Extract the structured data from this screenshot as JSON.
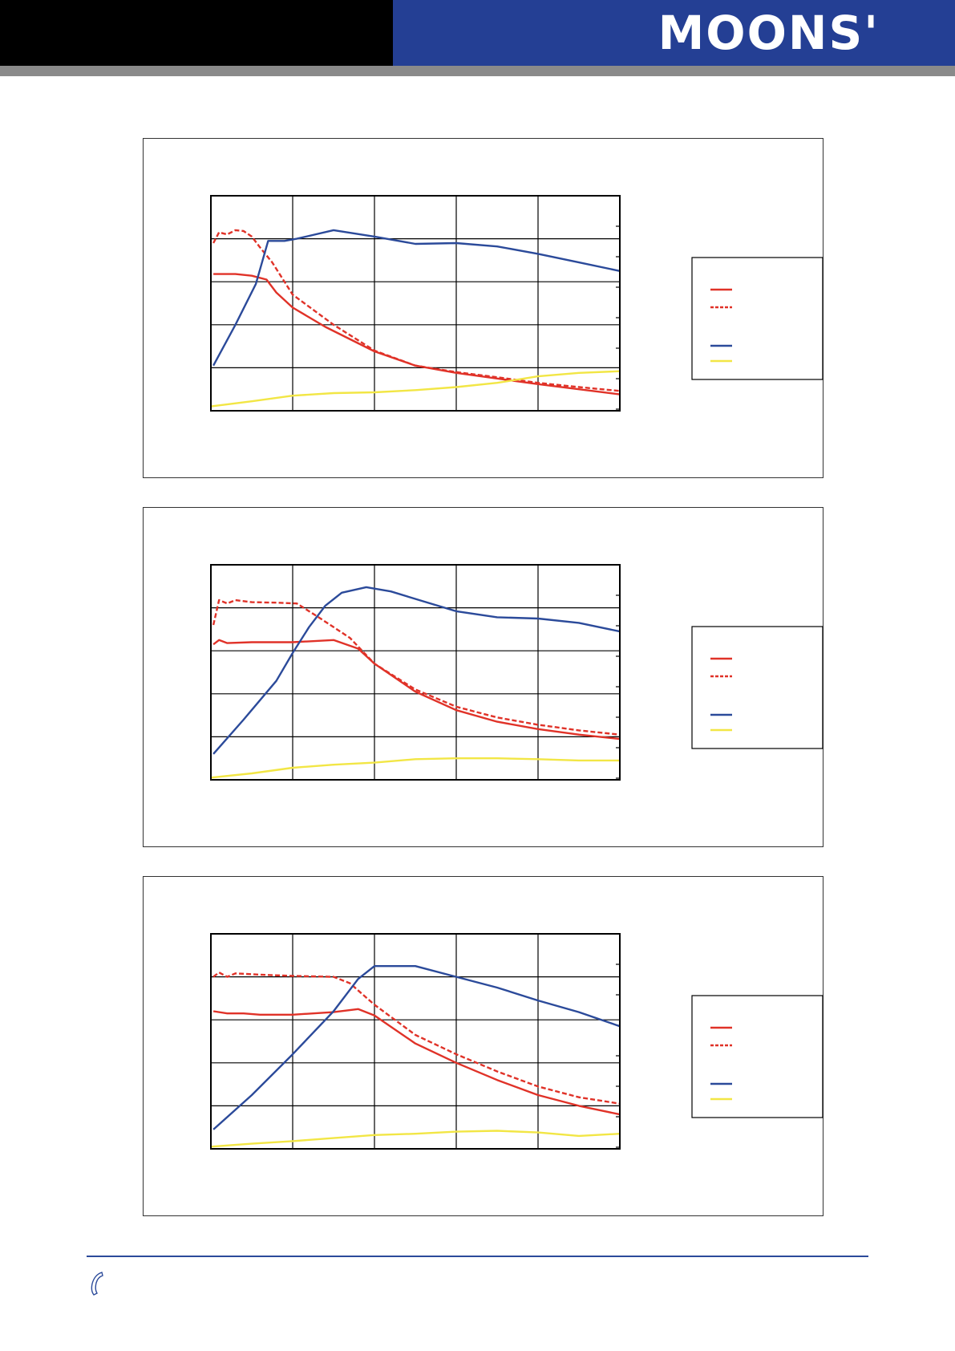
{
  "header": {
    "logo_text": "MOONS'",
    "colors": {
      "left_band": "#000000",
      "right_band": "#243f94",
      "stripe": "#8a8a8a"
    }
  },
  "footer": {
    "icon": "phone-icon"
  },
  "colors": {
    "torque_solid": "#e03228",
    "torque_dashed": "#e03228",
    "power": "#2b4a9a",
    "current": "#f2e645",
    "grid": "#000000"
  },
  "chart_data": [
    {
      "type": "line",
      "xlim": [
        0,
        5
      ],
      "ylim": [
        0,
        5
      ],
      "grid": true,
      "legend_position": "right",
      "series": [
        {
          "style": "solid",
          "color": "#e03228",
          "points": [
            [
              0.03,
              3.18
            ],
            [
              0.3,
              3.18
            ],
            [
              0.5,
              3.14
            ],
            [
              0.68,
              3.05
            ],
            [
              0.8,
              2.75
            ],
            [
              1.0,
              2.4
            ],
            [
              1.4,
              1.95
            ],
            [
              2.0,
              1.38
            ],
            [
              2.5,
              1.05
            ],
            [
              3.0,
              0.88
            ],
            [
              3.5,
              0.75
            ],
            [
              4.0,
              0.62
            ],
            [
              4.5,
              0.5
            ],
            [
              5.0,
              0.38
            ]
          ]
        },
        {
          "style": "dashed",
          "color": "#e03228",
          "points": [
            [
              0.03,
              3.9
            ],
            [
              0.1,
              4.15
            ],
            [
              0.2,
              4.1
            ],
            [
              0.3,
              4.2
            ],
            [
              0.4,
              4.18
            ],
            [
              0.5,
              4.05
            ],
            [
              0.6,
              3.8
            ],
            [
              0.75,
              3.45
            ],
            [
              1.0,
              2.7
            ],
            [
              1.5,
              2.0
            ],
            [
              2.0,
              1.4
            ],
            [
              2.5,
              1.05
            ],
            [
              3.0,
              0.9
            ],
            [
              3.5,
              0.78
            ],
            [
              4.0,
              0.65
            ],
            [
              4.5,
              0.55
            ],
            [
              5.0,
              0.46
            ]
          ]
        },
        {
          "style": "solid",
          "color": "#2b4a9a",
          "points": [
            [
              0.03,
              1.05
            ],
            [
              0.3,
              2.0
            ],
            [
              0.55,
              2.95
            ],
            [
              0.7,
              3.95
            ],
            [
              0.9,
              3.95
            ],
            [
              1.05,
              4.0
            ],
            [
              1.5,
              4.2
            ],
            [
              2.0,
              4.05
            ],
            [
              2.5,
              3.88
            ],
            [
              3.0,
              3.9
            ],
            [
              3.5,
              3.82
            ],
            [
              4.0,
              3.65
            ],
            [
              4.5,
              3.45
            ],
            [
              5.0,
              3.25
            ]
          ]
        },
        {
          "style": "solid",
          "color": "#f2e645",
          "points": [
            [
              0.0,
              0.1
            ],
            [
              0.5,
              0.22
            ],
            [
              1.0,
              0.35
            ],
            [
              1.5,
              0.41
            ],
            [
              2.0,
              0.43
            ],
            [
              2.5,
              0.48
            ],
            [
              3.0,
              0.55
            ],
            [
              3.5,
              0.65
            ],
            [
              4.0,
              0.8
            ],
            [
              4.5,
              0.88
            ],
            [
              5.0,
              0.92
            ]
          ]
        }
      ]
    },
    {
      "type": "line",
      "xlim": [
        0,
        5
      ],
      "ylim": [
        0,
        5
      ],
      "grid": true,
      "legend_position": "right",
      "series": [
        {
          "style": "solid",
          "color": "#e03228",
          "points": [
            [
              0.03,
              3.15
            ],
            [
              0.1,
              3.25
            ],
            [
              0.2,
              3.18
            ],
            [
              0.5,
              3.2
            ],
            [
              1.0,
              3.2
            ],
            [
              1.5,
              3.25
            ],
            [
              1.8,
              3.05
            ],
            [
              2.0,
              2.7
            ],
            [
              2.5,
              2.05
            ],
            [
              3.0,
              1.62
            ],
            [
              3.5,
              1.35
            ],
            [
              4.0,
              1.18
            ],
            [
              4.5,
              1.05
            ],
            [
              5.0,
              0.95
            ]
          ]
        },
        {
          "style": "dashed",
          "color": "#e03228",
          "points": [
            [
              0.03,
              3.6
            ],
            [
              0.1,
              4.18
            ],
            [
              0.2,
              4.1
            ],
            [
              0.3,
              4.18
            ],
            [
              0.5,
              4.13
            ],
            [
              0.8,
              4.12
            ],
            [
              1.05,
              4.1
            ],
            [
              1.3,
              3.8
            ],
            [
              1.7,
              3.3
            ],
            [
              2.0,
              2.7
            ],
            [
              2.5,
              2.1
            ],
            [
              3.0,
              1.7
            ],
            [
              3.5,
              1.45
            ],
            [
              4.0,
              1.28
            ],
            [
              4.5,
              1.15
            ],
            [
              5.0,
              1.05
            ]
          ]
        },
        {
          "style": "solid",
          "color": "#2b4a9a",
          "points": [
            [
              0.03,
              0.6
            ],
            [
              0.4,
              1.4
            ],
            [
              0.8,
              2.3
            ],
            [
              1.0,
              2.95
            ],
            [
              1.2,
              3.55
            ],
            [
              1.4,
              4.05
            ],
            [
              1.6,
              4.35
            ],
            [
              1.9,
              4.48
            ],
            [
              2.2,
              4.38
            ],
            [
              2.6,
              4.15
            ],
            [
              3.0,
              3.92
            ],
            [
              3.5,
              3.78
            ],
            [
              4.0,
              3.75
            ],
            [
              4.5,
              3.65
            ],
            [
              5.0,
              3.45
            ]
          ]
        },
        {
          "style": "solid",
          "color": "#f2e645",
          "points": [
            [
              0.0,
              0.05
            ],
            [
              0.5,
              0.15
            ],
            [
              1.0,
              0.28
            ],
            [
              1.5,
              0.35
            ],
            [
              2.0,
              0.4
            ],
            [
              2.5,
              0.48
            ],
            [
              3.0,
              0.5
            ],
            [
              3.5,
              0.5
            ],
            [
              4.0,
              0.48
            ],
            [
              4.5,
              0.45
            ],
            [
              5.0,
              0.45
            ]
          ]
        }
      ]
    },
    {
      "type": "line",
      "xlim": [
        0,
        5
      ],
      "ylim": [
        0,
        5
      ],
      "grid": true,
      "legend_position": "right",
      "series": [
        {
          "style": "solid",
          "color": "#e03228",
          "points": [
            [
              0.03,
              3.2
            ],
            [
              0.2,
              3.15
            ],
            [
              0.4,
              3.15
            ],
            [
              0.6,
              3.12
            ],
            [
              1.0,
              3.12
            ],
            [
              1.5,
              3.18
            ],
            [
              1.8,
              3.25
            ],
            [
              2.0,
              3.1
            ],
            [
              2.5,
              2.45
            ],
            [
              3.0,
              2.0
            ],
            [
              3.5,
              1.6
            ],
            [
              4.0,
              1.25
            ],
            [
              4.5,
              1.0
            ],
            [
              5.0,
              0.8
            ]
          ]
        },
        {
          "style": "dashed",
          "color": "#e03228",
          "points": [
            [
              0.03,
              4.0
            ],
            [
              0.1,
              4.1
            ],
            [
              0.2,
              4.0
            ],
            [
              0.3,
              4.08
            ],
            [
              0.6,
              4.05
            ],
            [
              1.0,
              4.02
            ],
            [
              1.5,
              4.0
            ],
            [
              1.7,
              3.85
            ],
            [
              2.0,
              3.35
            ],
            [
              2.5,
              2.65
            ],
            [
              3.0,
              2.2
            ],
            [
              3.5,
              1.8
            ],
            [
              4.0,
              1.45
            ],
            [
              4.5,
              1.2
            ],
            [
              5.0,
              1.05
            ]
          ]
        },
        {
          "style": "solid",
          "color": "#2b4a9a",
          "points": [
            [
              0.03,
              0.45
            ],
            [
              0.5,
              1.25
            ],
            [
              1.0,
              2.2
            ],
            [
              1.5,
              3.2
            ],
            [
              1.8,
              3.95
            ],
            [
              2.0,
              4.25
            ],
            [
              2.5,
              4.25
            ],
            [
              3.0,
              4.0
            ],
            [
              3.5,
              3.75
            ],
            [
              4.0,
              3.45
            ],
            [
              4.5,
              3.18
            ],
            [
              5.0,
              2.85
            ]
          ]
        },
        {
          "style": "solid",
          "color": "#f2e645",
          "points": [
            [
              0.0,
              0.05
            ],
            [
              0.5,
              0.12
            ],
            [
              1.0,
              0.18
            ],
            [
              1.5,
              0.25
            ],
            [
              2.0,
              0.32
            ],
            [
              2.5,
              0.35
            ],
            [
              3.0,
              0.4
            ],
            [
              3.5,
              0.42
            ],
            [
              4.0,
              0.38
            ],
            [
              4.5,
              0.3
            ],
            [
              5.0,
              0.35
            ]
          ]
        }
      ]
    }
  ]
}
